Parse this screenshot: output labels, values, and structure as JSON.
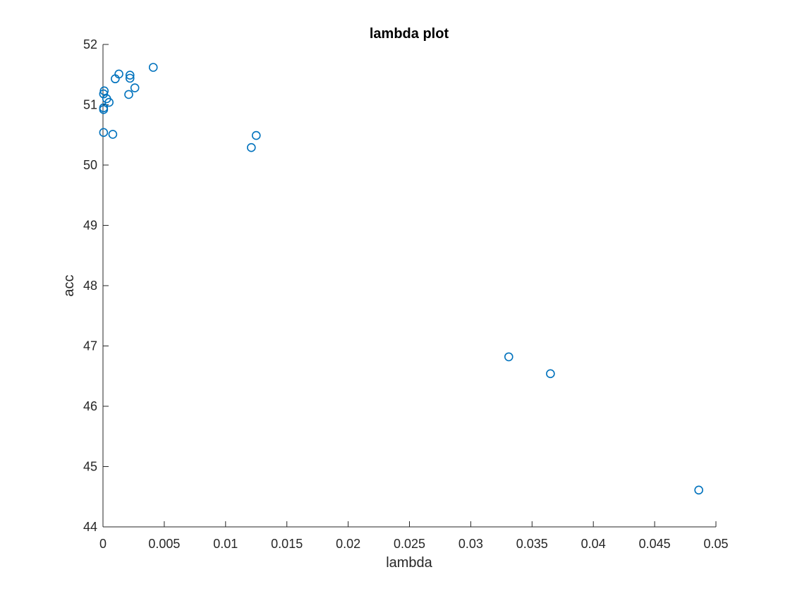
{
  "chart_data": {
    "type": "scatter",
    "title": "lambda plot",
    "xlabel": "lambda",
    "ylabel": "acc",
    "xlim": [
      0,
      0.05
    ],
    "ylim": [
      44,
      52
    ],
    "xticks": [
      "0",
      "0.005",
      "0.01",
      "0.015",
      "0.02",
      "0.025",
      "0.03",
      "0.035",
      "0.04",
      "0.045",
      "0.05"
    ],
    "yticks": [
      "44",
      "45",
      "46",
      "47",
      "48",
      "49",
      "50",
      "51",
      "52"
    ],
    "grid": false,
    "marker": "circle",
    "color": "#0072BD",
    "series": [
      {
        "points": [
          {
            "x": 5e-05,
            "y": 50.54
          },
          {
            "x": 5e-05,
            "y": 50.92
          },
          {
            "x": 5e-05,
            "y": 50.95
          },
          {
            "x": 5e-05,
            "y": 51.18
          },
          {
            "x": 0.0001,
            "y": 51.23
          },
          {
            "x": 0.0003,
            "y": 51.1
          },
          {
            "x": 0.0005,
            "y": 51.04
          },
          {
            "x": 0.0008,
            "y": 50.51
          },
          {
            "x": 0.001,
            "y": 51.43
          },
          {
            "x": 0.0013,
            "y": 51.51
          },
          {
            "x": 0.0021,
            "y": 51.17
          },
          {
            "x": 0.0022,
            "y": 51.44
          },
          {
            "x": 0.0022,
            "y": 51.49
          },
          {
            "x": 0.0026,
            "y": 51.28
          },
          {
            "x": 0.0041,
            "y": 51.62
          },
          {
            "x": 0.0121,
            "y": 50.29
          },
          {
            "x": 0.0125,
            "y": 50.49
          },
          {
            "x": 0.0331,
            "y": 46.82
          },
          {
            "x": 0.0365,
            "y": 46.54
          },
          {
            "x": 0.0486,
            "y": 44.61
          }
        ]
      }
    ]
  }
}
